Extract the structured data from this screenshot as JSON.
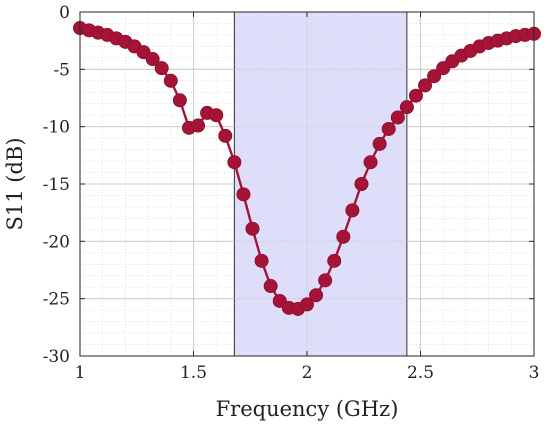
{
  "chart_data": {
    "type": "line",
    "title": "",
    "xlabel": "Frequency (GHz)",
    "ylabel": "S11 (dB)",
    "xlim": [
      1,
      3
    ],
    "ylim": [
      -30,
      0
    ],
    "xticks": [
      1,
      1.5,
      2,
      2.5,
      3
    ],
    "xtick_labels": [
      "1",
      "1.5",
      "2",
      "2.5",
      "3"
    ],
    "yticks": [
      0,
      -5,
      -10,
      -15,
      -20,
      -25,
      -30
    ],
    "ytick_labels": [
      "0",
      "-5",
      "-10",
      "-15",
      "-20",
      "-25",
      "-30"
    ],
    "grid": true,
    "minor_grid": true,
    "highlight_band": {
      "x_start": 1.68,
      "x_end": 2.44
    },
    "series": [
      {
        "color": "#a51437",
        "marker": "circle",
        "x": [
          1.0,
          1.04,
          1.08,
          1.12,
          1.16,
          1.2,
          1.24,
          1.28,
          1.32,
          1.36,
          1.4,
          1.44,
          1.48,
          1.52,
          1.56,
          1.6,
          1.64,
          1.68,
          1.72,
          1.76,
          1.8,
          1.84,
          1.88,
          1.92,
          1.96,
          2.0,
          2.04,
          2.08,
          2.12,
          2.16,
          2.2,
          2.24,
          2.28,
          2.32,
          2.36,
          2.4,
          2.44,
          2.48,
          2.52,
          2.56,
          2.6,
          2.64,
          2.68,
          2.72,
          2.76,
          2.8,
          2.84,
          2.88,
          2.92,
          2.96,
          3.0
        ],
        "y": [
          -1.4,
          -1.6,
          -1.8,
          -2.0,
          -2.3,
          -2.6,
          -3.0,
          -3.5,
          -4.1,
          -4.9,
          -6.0,
          -7.7,
          -10.1,
          -9.9,
          -8.8,
          -9.0,
          -10.8,
          -13.1,
          -15.9,
          -18.9,
          -21.7,
          -23.9,
          -25.2,
          -25.8,
          -25.9,
          -25.5,
          -24.7,
          -23.4,
          -21.7,
          -19.6,
          -17.3,
          -15.0,
          -13.1,
          -11.5,
          -10.2,
          -9.2,
          -8.3,
          -7.3,
          -6.4,
          -5.6,
          -4.9,
          -4.3,
          -3.8,
          -3.4,
          -3.0,
          -2.7,
          -2.5,
          -2.3,
          -2.1,
          -2.0,
          -1.9
        ]
      }
    ]
  }
}
